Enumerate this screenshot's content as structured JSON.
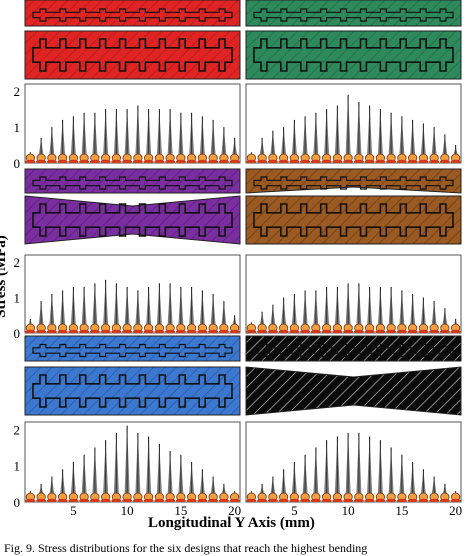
{
  "figure": {
    "y_axis_label": "Stress (MPa)",
    "x_axis_label": "Longitudinal Y Axis (mm)",
    "caption": "Fig. 9.  Stress distributions for the six designs that reach the highest bending"
  },
  "designs": [
    {
      "id": "red",
      "color": "#e02424",
      "hatch": "#b01818",
      "tapered_top": false,
      "tapered_bottom": false,
      "column": 0,
      "row": 0
    },
    {
      "id": "green",
      "color": "#2e8a5c",
      "hatch": "#1f6a44",
      "tapered_top": false,
      "tapered_bottom": false,
      "column": 1,
      "row": 0
    },
    {
      "id": "purple",
      "color": "#7a2ea0",
      "hatch": "#5a1a80",
      "tapered_top": false,
      "tapered_bottom": true,
      "column": 0,
      "row": 1
    },
    {
      "id": "brown",
      "color": "#9a5a22",
      "hatch": "#6a3a12",
      "tapered_top": true,
      "tapered_bottom": false,
      "column": 1,
      "row": 1
    },
    {
      "id": "blue",
      "color": "#3c78d0",
      "hatch": "#2456a0",
      "tapered_top": false,
      "tapered_bottom": false,
      "column": 0,
      "row": 2
    },
    {
      "id": "black",
      "color": "#0a0a0a",
      "hatch": "#bbbbbb",
      "tapered_top": false,
      "tapered_bottom": true,
      "column": 1,
      "row": 2
    }
  ],
  "chart_data": [
    {
      "type": "violin",
      "panel": "row1-left",
      "x_ticks": [
        5,
        10,
        15,
        20
      ],
      "y_ticks": [
        0,
        1,
        2
      ],
      "ylim": [
        0,
        2.2
      ],
      "xlim": [
        0.5,
        20.5
      ],
      "x": [
        1,
        2,
        3,
        4,
        5,
        6,
        7,
        8,
        9,
        10,
        11,
        12,
        13,
        14,
        15,
        16,
        17,
        18,
        19,
        20
      ],
      "max": [
        0.3,
        0.7,
        1.0,
        1.2,
        1.3,
        1.4,
        1.4,
        1.5,
        1.5,
        1.5,
        1.6,
        1.5,
        1.5,
        1.5,
        1.4,
        1.4,
        1.3,
        1.2,
        1.0,
        0.7
      ]
    },
    {
      "type": "violin",
      "panel": "row1-right",
      "x_ticks": [
        5,
        10,
        15,
        20
      ],
      "y_ticks": [
        0,
        1,
        2
      ],
      "ylim": [
        0,
        2.2
      ],
      "xlim": [
        0.5,
        20.5
      ],
      "x": [
        1,
        2,
        3,
        4,
        5,
        6,
        7,
        8,
        9,
        10,
        11,
        12,
        13,
        14,
        15,
        16,
        17,
        18,
        19,
        20
      ],
      "max": [
        0.3,
        0.7,
        0.9,
        1.0,
        1.2,
        1.3,
        1.4,
        1.5,
        1.6,
        1.9,
        1.7,
        1.6,
        1.5,
        1.4,
        1.3,
        1.2,
        1.1,
        1.0,
        0.8,
        0.5
      ]
    },
    {
      "type": "violin",
      "panel": "row2-left",
      "x_ticks": [
        5,
        10,
        15,
        20
      ],
      "y_ticks": [
        0,
        1,
        2
      ],
      "ylim": [
        0,
        2.2
      ],
      "xlim": [
        0.5,
        20.5
      ],
      "x": [
        1,
        2,
        3,
        4,
        5,
        6,
        7,
        8,
        9,
        10,
        11,
        12,
        13,
        14,
        15,
        16,
        17,
        18,
        19,
        20
      ],
      "max": [
        0.4,
        0.9,
        1.1,
        1.2,
        1.3,
        1.3,
        1.4,
        1.5,
        1.4,
        1.3,
        1.2,
        1.3,
        1.4,
        1.4,
        1.3,
        1.3,
        1.2,
        1.1,
        0.9,
        0.5
      ]
    },
    {
      "type": "violin",
      "panel": "row2-right",
      "x_ticks": [
        5,
        10,
        15,
        20
      ],
      "y_ticks": [
        0,
        1,
        2
      ],
      "ylim": [
        0,
        2.2
      ],
      "xlim": [
        0.5,
        20.5
      ],
      "x": [
        1,
        2,
        3,
        4,
        5,
        6,
        7,
        8,
        9,
        10,
        11,
        12,
        13,
        14,
        15,
        16,
        17,
        18,
        19,
        20
      ],
      "max": [
        0.3,
        0.6,
        0.8,
        1.0,
        1.1,
        1.2,
        1.2,
        1.3,
        1.3,
        1.4,
        1.4,
        1.3,
        1.3,
        1.3,
        1.2,
        1.1,
        1.0,
        0.9,
        0.7,
        0.4
      ]
    },
    {
      "type": "violin",
      "panel": "row3-left",
      "x_ticks": [
        5,
        10,
        15,
        20
      ],
      "y_ticks": [
        0,
        1,
        2
      ],
      "ylim": [
        0,
        2.2
      ],
      "xlim": [
        0.5,
        20.5
      ],
      "x": [
        1,
        2,
        3,
        4,
        5,
        6,
        7,
        8,
        9,
        10,
        11,
        12,
        13,
        14,
        15,
        16,
        17,
        18,
        19,
        20
      ],
      "max": [
        0.3,
        0.5,
        0.7,
        0.9,
        1.1,
        1.3,
        1.5,
        1.7,
        1.9,
        2.1,
        1.9,
        1.8,
        1.6,
        1.4,
        1.3,
        1.1,
        0.9,
        0.7,
        0.5,
        0.3
      ]
    },
    {
      "type": "violin",
      "panel": "row3-right",
      "x_ticks": [
        5,
        10,
        15,
        20
      ],
      "y_ticks": [
        0,
        1,
        2
      ],
      "ylim": [
        0,
        2.2
      ],
      "xlim": [
        0.5,
        20.5
      ],
      "x": [
        1,
        2,
        3,
        4,
        5,
        6,
        7,
        8,
        9,
        10,
        11,
        12,
        13,
        14,
        15,
        16,
        17,
        18,
        19,
        20
      ],
      "max": [
        0.3,
        0.5,
        0.7,
        0.9,
        1.1,
        1.3,
        1.5,
        1.7,
        1.8,
        1.9,
        1.9,
        1.8,
        1.7,
        1.5,
        1.3,
        1.1,
        0.9,
        0.7,
        0.5,
        0.3
      ]
    }
  ]
}
